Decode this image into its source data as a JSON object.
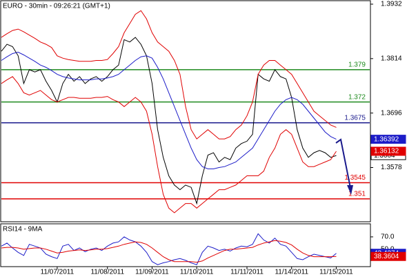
{
  "chart_data": [
    {
      "type": "line",
      "title": "EURO - 30min - 09:26:21 (GMT+1)",
      "xlim": [
        0,
        66
      ],
      "ylim": [
        1.3462,
        1.3938
      ],
      "yticks": [
        1.3932,
        1.3814,
        1.3696,
        1.3578
      ],
      "levels": [
        {
          "value": 1.379,
          "color": "#1e8a1e"
        },
        {
          "value": 1.372,
          "color": "#1e8a1e"
        },
        {
          "value": 1.3675,
          "color": "#1a1a8c"
        },
        {
          "value": 1.3545,
          "color": "#e00000"
        },
        {
          "value": 1.351,
          "color": "#e00000"
        }
      ],
      "series": [
        {
          "color": "#000000",
          "tag": true,
          "values": [
            1.383,
            1.3845,
            1.384,
            1.382,
            1.376,
            1.379,
            1.3785,
            1.379,
            1.3765,
            1.3745,
            1.372,
            1.376,
            1.378,
            1.3765,
            1.3775,
            1.376,
            1.377,
            1.3775,
            1.3765,
            1.3775,
            1.379,
            1.38,
            1.3855,
            1.385,
            1.386,
            1.3845,
            1.382,
            1.376,
            1.366,
            1.36,
            1.356,
            1.354,
            1.353,
            1.354,
            1.3535,
            1.35,
            1.356,
            1.3605,
            1.361,
            1.359,
            1.36,
            1.3595,
            1.362,
            1.363,
            1.3635,
            1.365,
            1.378,
            1.377,
            1.3765,
            1.379,
            1.3775,
            1.377,
            1.373,
            1.366,
            1.362,
            1.36,
            1.361,
            1.3615,
            1.361,
            1.36,
            1.3604
          ]
        },
        {
          "color": "#1c1cc8",
          "tag": true,
          "values": [
            1.381,
            1.3818,
            1.3825,
            1.3828,
            1.3822,
            1.3815,
            1.3808,
            1.38,
            1.3795,
            1.3788,
            1.378,
            1.3775,
            1.3772,
            1.377,
            1.3768,
            1.3768,
            1.3768,
            1.377,
            1.377,
            1.3772,
            1.3775,
            1.378,
            1.379,
            1.38,
            1.381,
            1.3818,
            1.382,
            1.3815,
            1.3795,
            1.377,
            1.374,
            1.371,
            1.368,
            1.365,
            1.362,
            1.3595,
            1.358,
            1.3575,
            1.3575,
            1.3578,
            1.358,
            1.3585,
            1.359,
            1.36,
            1.361,
            1.362,
            1.364,
            1.366,
            1.368,
            1.37,
            1.3715,
            1.3725,
            1.373,
            1.3725,
            1.3715,
            1.37,
            1.3685,
            1.367,
            1.3655,
            1.3645,
            1.36392
          ]
        },
        {
          "color": "#e00000",
          "tag": false,
          "values": [
            1.386,
            1.3868,
            1.3875,
            1.3878,
            1.3872,
            1.3865,
            1.3858,
            1.385,
            1.3845,
            1.3838,
            1.382,
            1.3815,
            1.3812,
            1.381,
            1.3808,
            1.3808,
            1.3808,
            1.381,
            1.381,
            1.3812,
            1.3825,
            1.384,
            1.387,
            1.389,
            1.391,
            1.3918,
            1.39,
            1.387,
            1.385,
            1.384,
            1.383,
            1.381,
            1.378,
            1.371,
            1.366,
            1.364,
            1.365,
            1.366,
            1.365,
            1.364,
            1.364,
            1.3645,
            1.366,
            1.367,
            1.369,
            1.372,
            1.378,
            1.38,
            1.381,
            1.381,
            1.38,
            1.379,
            1.378,
            1.376,
            1.374,
            1.372,
            1.37,
            1.369,
            1.368,
            1.367,
            1.3665
          ]
        },
        {
          "color": "#e00000",
          "tag": true,
          "values": [
            1.376,
            1.3768,
            1.3775,
            1.376,
            1.374,
            1.3735,
            1.374,
            1.3745,
            1.3735,
            1.3725,
            1.372,
            1.3725,
            1.373,
            1.373,
            1.3728,
            1.3728,
            1.3728,
            1.373,
            1.373,
            1.3732,
            1.3725,
            1.372,
            1.371,
            1.372,
            1.373,
            1.372,
            1.37,
            1.365,
            1.358,
            1.352,
            1.349,
            1.348,
            1.349,
            1.35,
            1.35,
            1.349,
            1.35,
            1.351,
            1.352,
            1.353,
            1.353,
            1.3535,
            1.354,
            1.355,
            1.356,
            1.356,
            1.356,
            1.357,
            1.36,
            1.362,
            1.365,
            1.366,
            1.365,
            1.362,
            1.359,
            1.358,
            1.358,
            1.3585,
            1.359,
            1.3595,
            1.36132
          ]
        }
      ]
    },
    {
      "type": "line",
      "title": "RSI14 - 9MA",
      "xlim": [
        0,
        66
      ],
      "xticks": [
        {
          "value": 10,
          "label": "11/07/2011"
        },
        {
          "value": 19,
          "label": "11/08/2011"
        },
        {
          "value": 27,
          "label": "11/09/2011"
        },
        {
          "value": 35,
          "label": "11/10/2011"
        },
        {
          "value": 44,
          "label": "11/11/2011"
        },
        {
          "value": 52,
          "label": "11/14/2011"
        },
        {
          "value": 60,
          "label": "11/15/2011"
        }
      ],
      "ylim": [
        23,
        90
      ],
      "yticks": [
        {
          "value": 70,
          "label": "70.0"
        },
        {
          "value": 50,
          "label": "50.0"
        }
      ],
      "series": [
        {
          "color": "#1c1cc8",
          "tag": true,
          "values": [
            55,
            60,
            52,
            45,
            40,
            58,
            55,
            52,
            42,
            38,
            35,
            55,
            58,
            48,
            52,
            46,
            50,
            52,
            48,
            55,
            60,
            62,
            70,
            65,
            62,
            55,
            45,
            30,
            25,
            28,
            30,
            33,
            35,
            32,
            28,
            25,
            45,
            55,
            52,
            48,
            50,
            47,
            52,
            55,
            54,
            58,
            75,
            65,
            60,
            68,
            58,
            55,
            45,
            35,
            33,
            38,
            42,
            40,
            38,
            36,
            43.4374
          ]
        },
        {
          "color": "#e00000",
          "tag": true,
          "values": [
            52,
            53,
            53,
            52,
            50,
            51,
            52,
            52,
            50,
            47,
            44,
            45,
            47,
            48,
            49,
            48,
            49,
            50,
            50,
            51,
            53,
            55,
            58,
            60,
            62,
            61,
            58,
            52,
            45,
            38,
            33,
            30,
            30,
            30,
            30,
            29,
            31,
            36,
            40,
            44,
            48,
            50,
            50,
            51,
            52,
            53,
            57,
            60,
            62,
            64,
            63,
            61,
            57,
            50,
            44,
            40,
            38,
            38,
            38,
            38,
            38.3604
          ]
        }
      ]
    }
  ]
}
